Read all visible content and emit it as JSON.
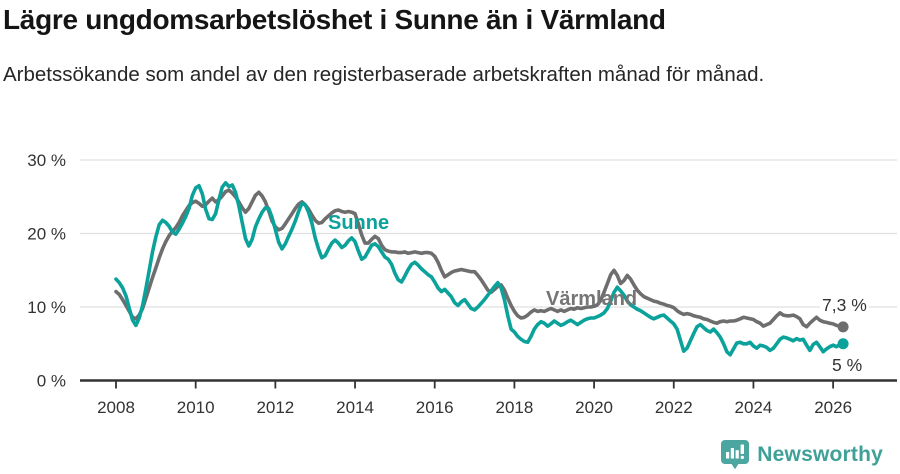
{
  "header": {
    "title": "Lägre ungdomsarbetslöshet i Sunne än i Värmland",
    "subtitle": "Arbetssökande som andel av den registerbaserade arbetskraften månad för månad."
  },
  "chart_data": {
    "type": "line",
    "title": "Lägre ungdomsarbetslöshet i Sunne än i Värmland",
    "x_unit": "month",
    "x_start": "2008-01",
    "x_end": "2026-04",
    "ylim": [
      0,
      30
    ],
    "grid": true,
    "yticks": [
      0,
      10,
      20,
      30
    ],
    "ytick_labels": [
      "0 %",
      "10 %",
      "20 %",
      "30 %"
    ],
    "xtick_labels": [
      "2008",
      "2010",
      "2012",
      "2014",
      "2016",
      "2018",
      "2020",
      "2022",
      "2024",
      "2026"
    ],
    "colors": {
      "axis": "#333333",
      "grid": "#e0e0e0"
    },
    "series": [
      {
        "name": "Värmland",
        "color": "#6e6e6e",
        "end_label": "7,3 %",
        "end_value": 7.3,
        "values": [
          12.1,
          11.7,
          11.0,
          10.2,
          9.4,
          8.6,
          8.4,
          8.9,
          9.8,
          11.2,
          12.6,
          14.0,
          15.3,
          16.7,
          17.9,
          18.9,
          19.7,
          20.3,
          20.8,
          21.5,
          22.4,
          23.1,
          23.8,
          24.2,
          24.4,
          24.1,
          23.7,
          23.9,
          24.4,
          24.8,
          24.3,
          24.6,
          25.1,
          25.7,
          25.9,
          25.5,
          25.0,
          24.3,
          23.5,
          22.9,
          23.4,
          24.3,
          25.2,
          25.6,
          25.1,
          24.3,
          23.1,
          21.7,
          20.9,
          20.5,
          20.7,
          21.3,
          22.0,
          22.7,
          23.4,
          24.0,
          24.3,
          23.9,
          23.3,
          22.5,
          21.8,
          21.4,
          21.5,
          22.0,
          22.4,
          22.8,
          23.1,
          23.2,
          23.0,
          22.9,
          23.0,
          22.9,
          22.7,
          21.3,
          19.8,
          18.7,
          18.7,
          19.2,
          19.6,
          19.3,
          18.4,
          17.8,
          17.6,
          17.5,
          17.5,
          17.4,
          17.4,
          17.5,
          17.3,
          17.4,
          17.5,
          17.4,
          17.3,
          17.4,
          17.4,
          17.3,
          16.9,
          16.1,
          15.0,
          14.1,
          14.4,
          14.7,
          14.9,
          15.0,
          15.1,
          15.0,
          14.9,
          14.8,
          14.8,
          14.3,
          13.7,
          13.0,
          12.3,
          12.0,
          12.4,
          12.8,
          13.0,
          12.3,
          11.2,
          10.2,
          9.4,
          8.8,
          8.5,
          8.6,
          8.9,
          9.3,
          9.6,
          9.4,
          9.5,
          9.4,
          9.6,
          9.8,
          9.6,
          9.4,
          9.6,
          9.4,
          9.6,
          9.8,
          9.7,
          9.9,
          9.8,
          9.9,
          10.0,
          10.0,
          10.1,
          10.3,
          10.9,
          12.0,
          13.2,
          14.4,
          15.0,
          14.3,
          13.2,
          13.6,
          14.3,
          13.8,
          13.0,
          12.3,
          11.8,
          11.4,
          11.2,
          11.0,
          10.8,
          10.7,
          10.5,
          10.4,
          10.2,
          10.1,
          9.9,
          9.5,
          9.2,
          9.0,
          9.1,
          9.0,
          8.8,
          8.7,
          8.6,
          8.4,
          8.3,
          8.1,
          7.9,
          7.8,
          8.0,
          8.1,
          8.0,
          8.1,
          8.1,
          8.2,
          8.4,
          8.6,
          8.5,
          8.4,
          8.3,
          8.0,
          7.8,
          7.4,
          7.6,
          7.8,
          8.3,
          8.8,
          9.2,
          8.9,
          8.8,
          8.8,
          8.9,
          8.7,
          8.4,
          7.6,
          7.3,
          7.8,
          8.2,
          8.6,
          8.2,
          8.0,
          7.9,
          7.8,
          7.7,
          7.5,
          7.4,
          7.3
        ]
      },
      {
        "name": "Sunne",
        "color": "#0aa29a",
        "end_label": "5 %",
        "end_value": 5.0,
        "values": [
          13.8,
          13.3,
          12.6,
          11.5,
          9.8,
          8.2,
          7.5,
          8.5,
          10.2,
          12.5,
          15.0,
          17.5,
          19.5,
          21.2,
          21.8,
          21.5,
          21.0,
          20.2,
          19.9,
          20.6,
          21.4,
          22.3,
          23.4,
          25.2,
          26.2,
          26.5,
          25.4,
          23.3,
          22.0,
          21.9,
          22.7,
          24.6,
          26.3,
          26.9,
          26.4,
          26.6,
          25.6,
          23.8,
          21.5,
          19.3,
          18.3,
          19.2,
          20.9,
          22.0,
          22.9,
          23.5,
          23.4,
          22.2,
          20.5,
          18.8,
          17.9,
          18.6,
          19.6,
          20.6,
          21.7,
          23.0,
          24.1,
          23.9,
          22.9,
          21.4,
          19.4,
          17.9,
          16.7,
          17.0,
          17.9,
          18.7,
          19.1,
          18.7,
          18.1,
          18.4,
          19.0,
          19.4,
          18.9,
          17.6,
          16.5,
          16.8,
          17.6,
          18.4,
          18.6,
          18.2,
          17.5,
          16.8,
          16.5,
          15.8,
          14.6,
          13.7,
          13.4,
          14.2,
          15.1,
          15.8,
          16.1,
          15.7,
          15.2,
          14.8,
          14.4,
          14.1,
          13.4,
          12.6,
          12.1,
          12.4,
          11.9,
          11.4,
          10.6,
          10.2,
          10.7,
          11.0,
          10.4,
          9.8,
          9.6,
          10.0,
          10.5,
          11.0,
          11.6,
          12.2,
          12.8,
          13.3,
          12.6,
          11.0,
          8.8,
          7.0,
          6.6,
          6.0,
          5.6,
          5.3,
          5.2,
          6.0,
          7.0,
          7.6,
          8.0,
          7.8,
          7.4,
          7.7,
          8.1,
          7.8,
          7.5,
          7.7,
          8.0,
          8.2,
          7.9,
          7.6,
          7.9,
          8.2,
          8.4,
          8.5,
          8.5,
          8.7,
          8.9,
          9.2,
          9.8,
          10.8,
          12.0,
          12.7,
          12.2,
          11.6,
          10.8,
          10.3,
          10.0,
          9.7,
          9.5,
          9.2,
          8.9,
          8.6,
          8.4,
          8.6,
          8.8,
          8.9,
          8.5,
          8.1,
          7.7,
          7.0,
          5.5,
          4.0,
          4.4,
          5.4,
          6.4,
          7.3,
          7.6,
          7.2,
          6.8,
          6.6,
          7.0,
          6.5,
          5.9,
          5.0,
          3.9,
          3.5,
          4.3,
          5.1,
          5.2,
          5.0,
          5.0,
          5.2,
          4.7,
          4.4,
          4.8,
          4.7,
          4.5,
          4.1,
          4.4,
          5.0,
          5.6,
          5.9,
          5.8,
          5.6,
          5.4,
          5.7,
          5.5,
          5.6,
          4.8,
          4.1,
          4.9,
          5.2,
          4.6,
          3.9,
          4.3,
          4.6,
          4.8,
          4.6,
          4.9,
          5.0
        ]
      }
    ]
  },
  "footer": {
    "brand": "Newsworthy",
    "brand_color": "#3fa098",
    "icon_color": "#4aa69e"
  }
}
